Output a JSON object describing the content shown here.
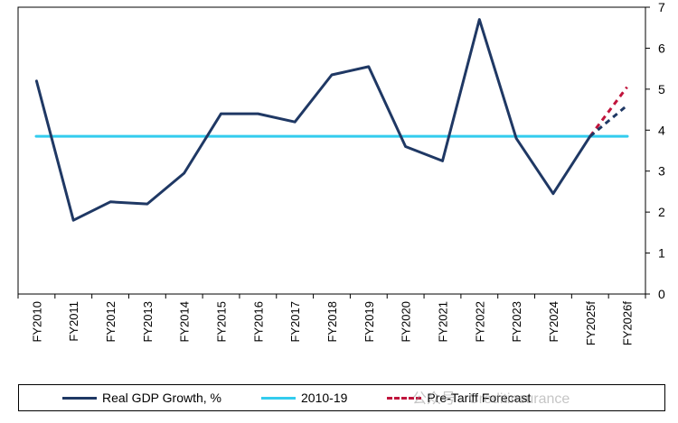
{
  "chart_data": {
    "type": "line",
    "categories": [
      "FY2010",
      "FY2011",
      "FY2012",
      "FY2013",
      "FY2014",
      "FY2015",
      "FY2016",
      "FY2017",
      "FY2018",
      "FY2019",
      "FY2020",
      "FY2021",
      "FY2022",
      "FY2023",
      "FY2024",
      "FY2025f",
      "FY2026f"
    ],
    "series": [
      {
        "name": "Real GDP Growth, %",
        "color": "#1f3864",
        "style": "solid",
        "values": [
          5.2,
          1.8,
          2.25,
          2.2,
          2.95,
          4.4,
          4.4,
          4.2,
          5.35,
          5.55,
          3.6,
          3.25,
          6.7,
          3.8,
          2.45,
          3.85,
          null
        ]
      },
      {
        "name": "",
        "color": "#1f3864",
        "style": "dashed",
        "values": [
          null,
          null,
          null,
          null,
          null,
          null,
          null,
          null,
          null,
          null,
          null,
          null,
          null,
          null,
          null,
          3.85,
          4.6
        ]
      },
      {
        "name": "Pre-Tariff Forecast",
        "color": "#c0143c",
        "style": "dashed",
        "values": [
          null,
          null,
          null,
          null,
          null,
          null,
          null,
          null,
          null,
          null,
          null,
          null,
          null,
          null,
          null,
          3.85,
          5.05
        ]
      },
      {
        "name": "2010-19",
        "color": "#33ccee",
        "style": "solid",
        "values": [
          3.85,
          3.85,
          3.85,
          3.85,
          3.85,
          3.85,
          3.85,
          3.85,
          3.85,
          3.85,
          3.85,
          3.85,
          3.85,
          3.85,
          3.85,
          3.85,
          3.85
        ]
      }
    ],
    "y_ticks": [
      "0",
      "1",
      "2",
      "3",
      "4",
      "5",
      "6",
      "7"
    ],
    "ylim": [
      0,
      7
    ],
    "y_axis_side": "right",
    "grid": false,
    "legend_position": "bottom"
  },
  "legend": {
    "items": [
      {
        "label": "Real GDP  Growth, %",
        "color": "#1f3864",
        "style": "solid"
      },
      {
        "label": "2010-19",
        "color": "#33ccee",
        "style": "solid"
      },
      {
        "label": "Pre-Tariff Forecast",
        "color": "#c0143c",
        "style": "dashed"
      }
    ]
  },
  "watermark": "公众号 · Creditinsurance"
}
